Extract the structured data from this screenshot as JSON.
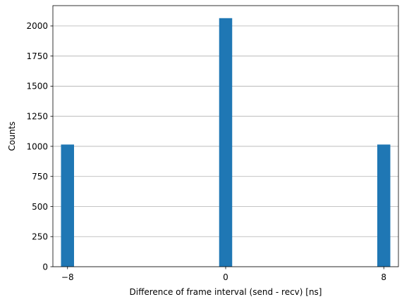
{
  "chart_data": {
    "type": "bar",
    "title": "",
    "xlabel": "Difference of frame interval (send - recv) [ns]",
    "ylabel": "Counts",
    "x": [
      -8,
      0,
      8
    ],
    "values": [
      1015,
      2065,
      1015
    ],
    "bin_width": 0.66,
    "xlim": [
      -8.74,
      8.74
    ],
    "ylim": [
      0,
      2169
    ],
    "xticks": [
      -8,
      0,
      8
    ],
    "xtick_labels": [
      "−8",
      "0",
      "8"
    ],
    "yticks": [
      0,
      250,
      500,
      750,
      1000,
      1250,
      1500,
      1750,
      2000
    ],
    "ytick_labels": [
      "0",
      "250",
      "500",
      "750",
      "1000",
      "1250",
      "1500",
      "1750",
      "2000"
    ],
    "grid": "horizontal",
    "colors": {
      "bar": "#1f77b4",
      "grid": "#b0b0b0",
      "axis": "#000000"
    }
  }
}
